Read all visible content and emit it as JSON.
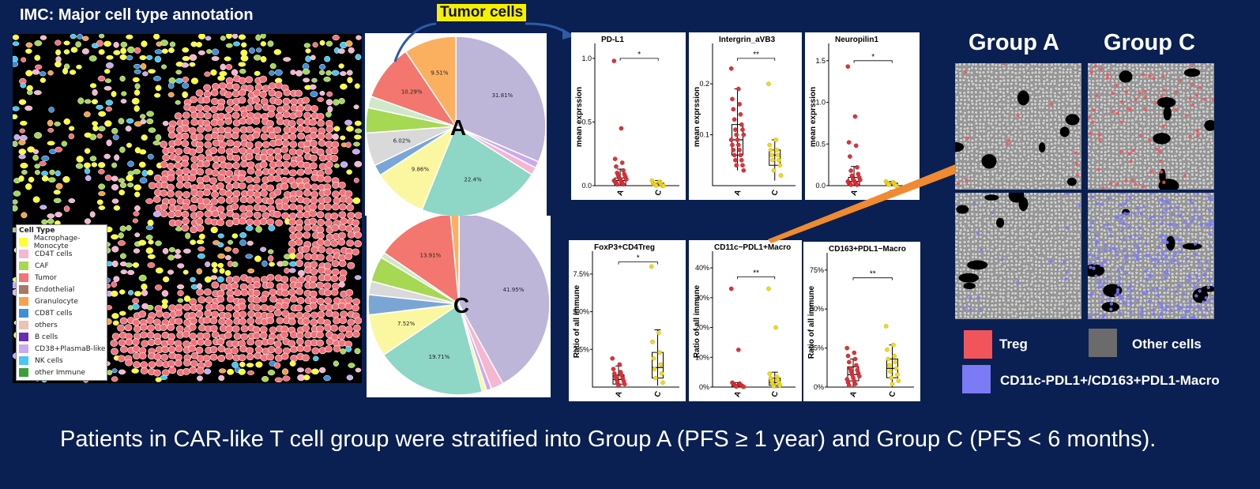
{
  "title": "IMC: Major cell type annotation",
  "legend": {
    "title": "Cell Type",
    "items": [
      {
        "label": "Macrophage-Monocyte",
        "color": "#ffff33"
      },
      {
        "label": "CD4T cells",
        "color": "#f5b6d0"
      },
      {
        "label": "CAF",
        "color": "#a6d854"
      },
      {
        "label": "Tumor",
        "color": "#f4737a"
      },
      {
        "label": "Endothelial",
        "color": "#a97766"
      },
      {
        "label": "Granulocyte",
        "color": "#f7a24a"
      },
      {
        "label": "CD8T cells",
        "color": "#3d8fd9"
      },
      {
        "label": "others",
        "color": "#e8c3b6"
      },
      {
        "label": "B cells",
        "color": "#6a2bb8"
      },
      {
        "label": "CD38+PlasmaB-like",
        "color": "#c9aaf0"
      },
      {
        "label": "NK cells",
        "color": "#48c7f0"
      },
      {
        "label": "other Immune",
        "color": "#3a9e3a"
      }
    ]
  },
  "tumor_cells_label": "Tumor cells",
  "group_headers": {
    "a": "Group A",
    "c": "Group C"
  },
  "overlay_legend": [
    {
      "label": "Treg",
      "color": "#f2545b"
    },
    {
      "label": "Other cells",
      "color": "#6b6b6b"
    },
    {
      "label": "CD11c-PDL1+/CD163+PDL1-Macro",
      "color": "#7b7bf5"
    }
  ],
  "caption": "Patients in CAR-like T cell group were stratified into Group A (PFS ≥ 1 year) and Group C (PFS < 6 months).",
  "chart_data": [
    {
      "type": "pie",
      "center_label": "A",
      "slices": [
        {
          "value": 31.81,
          "label": "31.81%",
          "color": "#bdb6d9"
        },
        {
          "value": 1.2,
          "label": "",
          "color": "#c9aaf0"
        },
        {
          "value": 1.4,
          "label": "",
          "color": "#f5b6d0"
        },
        {
          "value": 22.4,
          "label": "22.4%",
          "color": "#8ed6c6"
        },
        {
          "value": 9.86,
          "label": "9.86%",
          "color": "#fbf7a0"
        },
        {
          "value": 2.0,
          "label": "",
          "color": "#7aa6d6"
        },
        {
          "value": 6.02,
          "label": "6.02%",
          "color": "#d9d9d9"
        },
        {
          "value": 4.6,
          "label": "",
          "color": "#a6d854"
        },
        {
          "value": 2.1,
          "label": "",
          "color": "#cfe8c8"
        },
        {
          "value": 10.29,
          "label": "10.29%",
          "color": "#f4776f"
        },
        {
          "value": 9.51,
          "label": "9.51%",
          "color": "#fbb060"
        }
      ]
    },
    {
      "type": "pie",
      "center_label": "C",
      "slices": [
        {
          "value": 41.95,
          "label": "41.95%",
          "color": "#bdb6d9"
        },
        {
          "value": 2.2,
          "label": "",
          "color": "#f5b6d0"
        },
        {
          "value": 0.9,
          "label": "",
          "color": "#c9aaf0"
        },
        {
          "value": 0.8,
          "label": "",
          "color": "#fbf7a0"
        },
        {
          "value": 19.71,
          "label": "19.71%",
          "color": "#8ed6c6"
        },
        {
          "value": 7.52,
          "label": "7.52%",
          "color": "#fbf7a0"
        },
        {
          "value": 3.6,
          "label": "",
          "color": "#7aa6d6"
        },
        {
          "value": 2.4,
          "label": "",
          "color": "#d9d9d9"
        },
        {
          "value": 4.5,
          "label": "",
          "color": "#a6d854"
        },
        {
          "value": 1.0,
          "label": "",
          "color": "#cfe8c8"
        },
        {
          "value": 13.91,
          "label": "13.91%",
          "color": "#f4776f"
        },
        {
          "value": 1.5,
          "label": "",
          "color": "#fbb060"
        }
      ]
    },
    {
      "type": "scatter",
      "title": "PD-L1",
      "ylabel": "mean exprssion",
      "categories": [
        "A",
        "C"
      ],
      "ylim": [
        0,
        1.08
      ],
      "yticks": [
        0.0,
        0.5,
        1.0
      ],
      "ytick_labels": [
        "0.0",
        "0.5",
        "1.0"
      ],
      "sig": "*",
      "sig_y": 1.0,
      "box": [
        {
          "q1": 0.0,
          "median": 0.04,
          "q3": 0.06,
          "whisker_low": 0.0,
          "whisker_high": 0.13
        },
        {
          "q1": 0.0,
          "median": 0.01,
          "q3": 0.02,
          "whisker_low": 0.0,
          "whisker_high": 0.04
        }
      ],
      "points": [
        [
          0.98,
          0.45,
          0.21,
          0.18,
          0.15,
          0.12,
          0.1,
          0.09,
          0.08,
          0.07,
          0.06,
          0.05,
          0.05,
          0.04,
          0.03,
          0.03,
          0.02,
          0.02,
          0.01,
          0.01
        ],
        [
          0.04,
          0.03,
          0.02,
          0.02,
          0.01,
          0.01,
          0.01,
          0.0,
          0.0,
          0.0
        ]
      ]
    },
    {
      "type": "scatter",
      "title": "Intergrin_aVB3",
      "ylabel": "mean exprssion",
      "categories": [
        "A",
        "C"
      ],
      "ylim": [
        0.0,
        0.27
      ],
      "yticks": [
        0.1,
        0.2
      ],
      "ytick_labels": [
        "0.1",
        "0.2"
      ],
      "sig": "**",
      "sig_y": 0.25,
      "box": [
        {
          "q1": 0.06,
          "median": 0.09,
          "q3": 0.12,
          "whisker_low": 0.03,
          "whisker_high": 0.19
        },
        {
          "q1": 0.04,
          "median": 0.06,
          "q3": 0.07,
          "whisker_low": 0.01,
          "whisker_high": 0.09
        }
      ],
      "points": [
        [
          0.23,
          0.19,
          0.17,
          0.16,
          0.15,
          0.14,
          0.13,
          0.12,
          0.11,
          0.11,
          0.1,
          0.1,
          0.09,
          0.09,
          0.08,
          0.08,
          0.07,
          0.07,
          0.06,
          0.06,
          0.05,
          0.05,
          0.04,
          0.04,
          0.03
        ],
        [
          0.2,
          0.09,
          0.08,
          0.07,
          0.07,
          0.06,
          0.06,
          0.05,
          0.05,
          0.04,
          0.03,
          0.02
        ]
      ]
    },
    {
      "type": "scatter",
      "title": "Neuropilin1",
      "ylabel": "mean exprssion",
      "categories": [
        "A",
        "C"
      ],
      "ylim": [
        0,
        1.65
      ],
      "yticks": [
        0.0,
        0.5,
        1.0,
        1.5
      ],
      "ytick_labels": [
        "0.0",
        "0.5",
        "1.0",
        "1.5"
      ],
      "sig": "*",
      "sig_y": 1.5,
      "box": [
        {
          "q1": 0.0,
          "median": 0.05,
          "q3": 0.1,
          "whisker_low": 0.0,
          "whisker_high": 0.23
        },
        {
          "q1": 0.0,
          "median": 0.01,
          "q3": 0.03,
          "whisker_low": 0.0,
          "whisker_high": 0.05
        }
      ],
      "points": [
        [
          1.43,
          0.83,
          0.52,
          0.48,
          0.35,
          0.22,
          0.18,
          0.14,
          0.12,
          0.1,
          0.08,
          0.07,
          0.06,
          0.05,
          0.04,
          0.03,
          0.02,
          0.02,
          0.01,
          0.01
        ],
        [
          0.05,
          0.04,
          0.03,
          0.02,
          0.02,
          0.01,
          0.01,
          0.0
        ]
      ]
    },
    {
      "type": "scatter",
      "title": "FoxP3+CD4Treg",
      "ylabel": "Ratio of all immune",
      "categories": [
        "A",
        "C"
      ],
      "ylim": [
        0,
        8.7
      ],
      "yticks": [
        2.5,
        5.0,
        7.5
      ],
      "ytick_labels": [
        "2.5%",
        "5.0%",
        "7.5%"
      ],
      "sig": "*",
      "sig_y": 8.3,
      "box": [
        {
          "q1": 0.2,
          "median": 0.5,
          "q3": 0.8,
          "whisker_low": 0.0,
          "whisker_high": 1.4
        },
        {
          "q1": 0.6,
          "median": 1.3,
          "q3": 2.3,
          "whisker_low": 0.1,
          "whisker_high": 3.8
        }
      ],
      "points": [
        [
          1.9,
          1.5,
          1.2,
          1.0,
          0.9,
          0.8,
          0.7,
          0.6,
          0.5,
          0.4,
          0.3,
          0.2,
          0.1
        ],
        [
          8.0,
          3.6,
          3.0,
          2.3,
          1.9,
          1.5,
          1.2,
          0.9,
          0.6,
          0.3
        ]
      ]
    },
    {
      "type": "scatter",
      "title": "CD11c−PDL1+Macro",
      "ylabel": "Ratio of all immune",
      "categories": [
        "A",
        "C"
      ],
      "ylim": [
        0,
        44
      ],
      "yticks": [
        0,
        10,
        20,
        30,
        40
      ],
      "ytick_labels": [
        "0%",
        "10%",
        "20%",
        "30%",
        "40%"
      ],
      "sig": "**",
      "sig_y": 37,
      "box": [
        {
          "q1": 0.1,
          "median": 0.3,
          "q3": 0.8,
          "whisker_low": 0.0,
          "whisker_high": 1.5
        },
        {
          "q1": 0.6,
          "median": 1.5,
          "q3": 3.0,
          "whisker_low": 0.0,
          "whisker_high": 5.0
        }
      ],
      "points": [
        [
          33,
          12.5,
          1.5,
          1.2,
          1.0,
          0.8,
          0.6,
          0.5,
          0.4,
          0.3,
          0.2,
          0.1
        ],
        [
          33,
          20,
          4.5,
          3.5,
          3.0,
          2.5,
          2.0,
          1.5,
          1.0,
          0.6,
          0.3
        ]
      ]
    },
    {
      "type": "scatter",
      "title": "CD163+PDL1−Macro",
      "ylabel": "Ratio of all immune",
      "categories": [
        "A",
        "C"
      ],
      "ylim": [
        0,
        83
      ],
      "yticks": [
        0,
        25,
        50,
        75
      ],
      "ytick_labels": [
        "0%",
        "25%",
        "50%",
        "75%"
      ],
      "sig": "**",
      "sig_y": 70,
      "box": [
        {
          "q1": 4,
          "median": 8,
          "q3": 13,
          "whisker_low": 0,
          "whisker_high": 18
        },
        {
          "q1": 6,
          "median": 12,
          "q3": 18,
          "whisker_low": 0,
          "whisker_high": 27
        }
      ],
      "points": [
        [
          25,
          22,
          20,
          18,
          16,
          14,
          12,
          11,
          10,
          9,
          8,
          7,
          6,
          5,
          4,
          3,
          2,
          1
        ],
        [
          39,
          27,
          24,
          20,
          18,
          16,
          14,
          12,
          10,
          8,
          6,
          4,
          2
        ]
      ]
    }
  ]
}
